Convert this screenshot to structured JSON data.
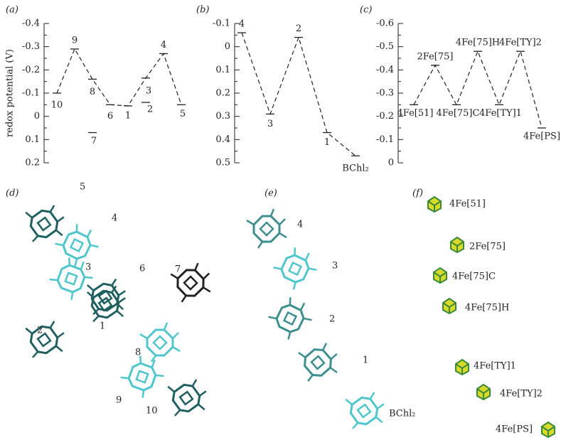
{
  "chart_data": [
    {
      "type": "line",
      "panel_label": "(a)",
      "y_label": "redox potential (V)",
      "ylim": [
        -0.4,
        0.2
      ],
      "yticks": [
        -0.4,
        -0.3,
        -0.2,
        -0.1,
        0,
        0.1,
        0.2
      ],
      "y_inverted": true,
      "line_style": "dashed",
      "color": "#222",
      "categories": [
        null,
        null,
        null,
        null,
        null,
        null,
        null,
        null
      ],
      "series": [
        {
          "values": [
            -0.1,
            -0.29,
            -0.16,
            -0.05,
            -0.045,
            -0.165,
            -0.27,
            -0.05
          ],
          "connected": true,
          "point_labels": [
            "10",
            "9",
            "8",
            "6",
            "1",
            "3",
            "4",
            "5"
          ]
        },
        {
          "values": [
            null,
            null,
            0.07,
            null,
            null,
            -0.06,
            null,
            null
          ],
          "connected": false,
          "point_labels": [
            null,
            null,
            "7",
            null,
            null,
            "2",
            null,
            null
          ]
        }
      ]
    },
    {
      "type": "line",
      "panel_label": "(b)",
      "ylim": [
        -0.1,
        0.5
      ],
      "yticks": [
        -0.1,
        0,
        0.1,
        0.2,
        0.3,
        0.4,
        0.5
      ],
      "y_inverted": true,
      "line_style": "dashed",
      "color": "#222",
      "categories": [
        null,
        null,
        null,
        null,
        null
      ],
      "series": [
        {
          "values": [
            -0.06,
            0.29,
            -0.04,
            0.37,
            0.47
          ],
          "connected": true,
          "point_labels": [
            "4",
            "3",
            "2",
            "1",
            "BChl₂"
          ]
        }
      ]
    },
    {
      "type": "line",
      "panel_label": "(c)",
      "ylim": [
        -0.6,
        0
      ],
      "yticks": [
        -0.6,
        -0.5,
        -0.4,
        -0.3,
        -0.2,
        -0.1,
        0
      ],
      "y_inverted": true,
      "line_style": "dashed",
      "color": "#222",
      "categories": [
        null,
        null,
        null,
        null,
        null,
        null,
        null
      ],
      "series": [
        {
          "values": [
            -0.25,
            -0.42,
            -0.25,
            -0.48,
            -0.25,
            -0.48,
            -0.15
          ],
          "connected": true,
          "point_labels": [
            "4Fe[51]",
            "2Fe[75]",
            "4Fe[75]C",
            "4Fe[75]H",
            "4Fe[TY]1",
            "4Fe[TY]2",
            "4Fe[PS]"
          ]
        }
      ]
    }
  ],
  "structures": [
    {
      "panel_label": "(d)",
      "labels": [
        "5",
        "4",
        "3",
        "6",
        "7",
        "1",
        "2",
        "8",
        "9",
        "10"
      ]
    },
    {
      "panel_label": "(e)",
      "labels": [
        "4",
        "3",
        "2",
        "1",
        "BChl₂"
      ]
    },
    {
      "panel_label": "(f)",
      "labels": [
        "4Fe[51]",
        "2Fe[75]",
        "4Fe[75]C",
        "4Fe[75]H",
        "4Fe[TY]1",
        "4Fe[TY]2",
        "4Fe[PS]"
      ]
    }
  ]
}
